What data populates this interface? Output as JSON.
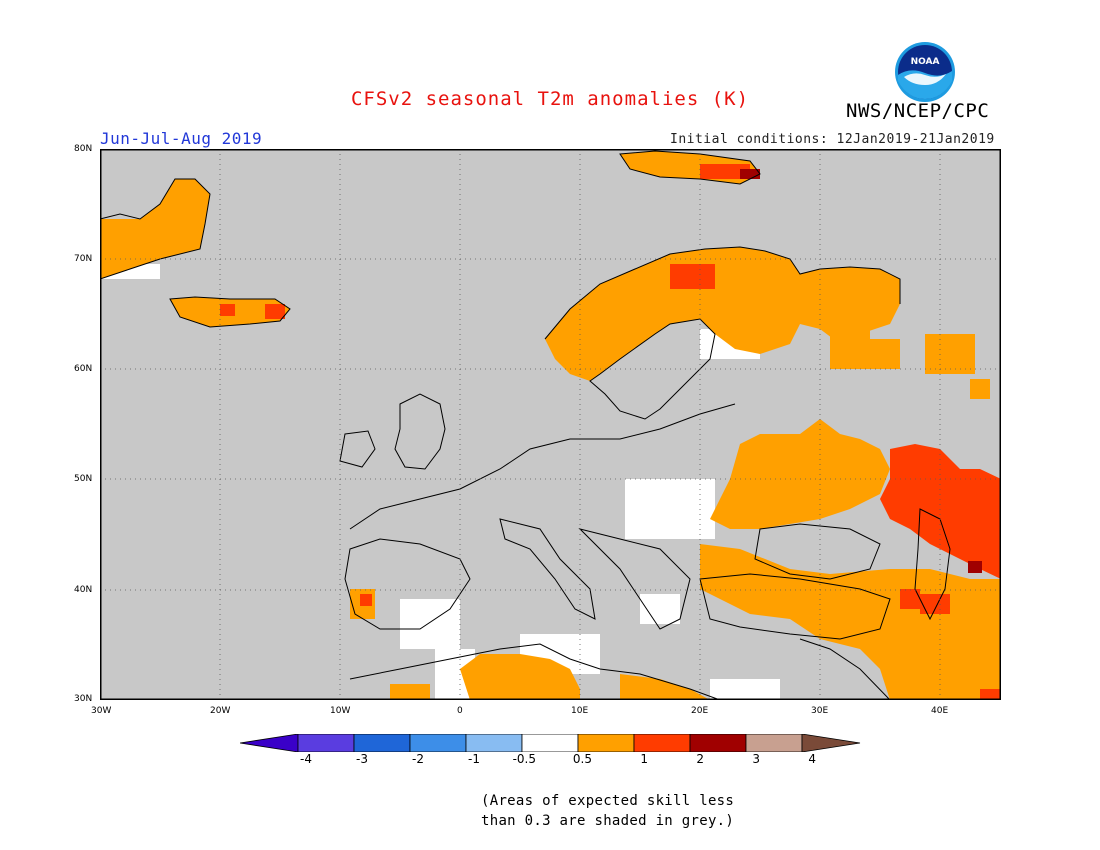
{
  "header": {
    "title": "CFSv2 seasonal T2m anomalies (K)",
    "agency": "NWS/NCEP/CPC",
    "logo_text": "NOAA",
    "period": "Jun-Jul-Aug 2019",
    "initial_conditions": "Initial conditions: 12Jan2019-21Jan2019"
  },
  "map": {
    "lon_range": [
      -30,
      45
    ],
    "lat_range": [
      30,
      80
    ],
    "lon_ticks": [
      "30W",
      "20W",
      "10W",
      "0",
      "10E",
      "20E",
      "30E",
      "40E"
    ],
    "lat_ticks": [
      "80N",
      "70N",
      "60N",
      "50N",
      "40N",
      "30N"
    ],
    "grid": "dotted",
    "land_mask_color": "#c8c8c8",
    "anomaly_regions": [
      {
        "name": "Scandinavia",
        "level": "0.5-1"
      },
      {
        "name": "Eastern Europe / Ukraine",
        "level": "0.5-1"
      },
      {
        "name": "Southern Russia / Caspian",
        "level": "1-2"
      },
      {
        "name": "Turkey",
        "level": "0.5-1"
      },
      {
        "name": "North Africa",
        "level": "0.5-1"
      },
      {
        "name": "Middle East",
        "level": "0.5-1"
      },
      {
        "name": "Iceland",
        "level": "0.5-1"
      },
      {
        "name": "Greenland coast",
        "level": "0.5-1"
      },
      {
        "name": "Svalbard",
        "level": "0.5-1"
      }
    ]
  },
  "colorbar": {
    "labels": [
      "-4",
      "-3",
      "-2",
      "-1",
      "-0.5",
      "0.5",
      "1",
      "2",
      "3",
      "4"
    ],
    "colors": [
      "#3a00c8",
      "#5a3de0",
      "#1f66d8",
      "#3d8ee8",
      "#88bcf2",
      "#ffffff",
      "#ffa000",
      "#ff3c00",
      "#a00000",
      "#c8a090",
      "#7a4a38"
    ]
  },
  "footnote": {
    "line1": "(Areas of expected skill less",
    "line2": "than 0.3 are shaded in grey.)"
  }
}
